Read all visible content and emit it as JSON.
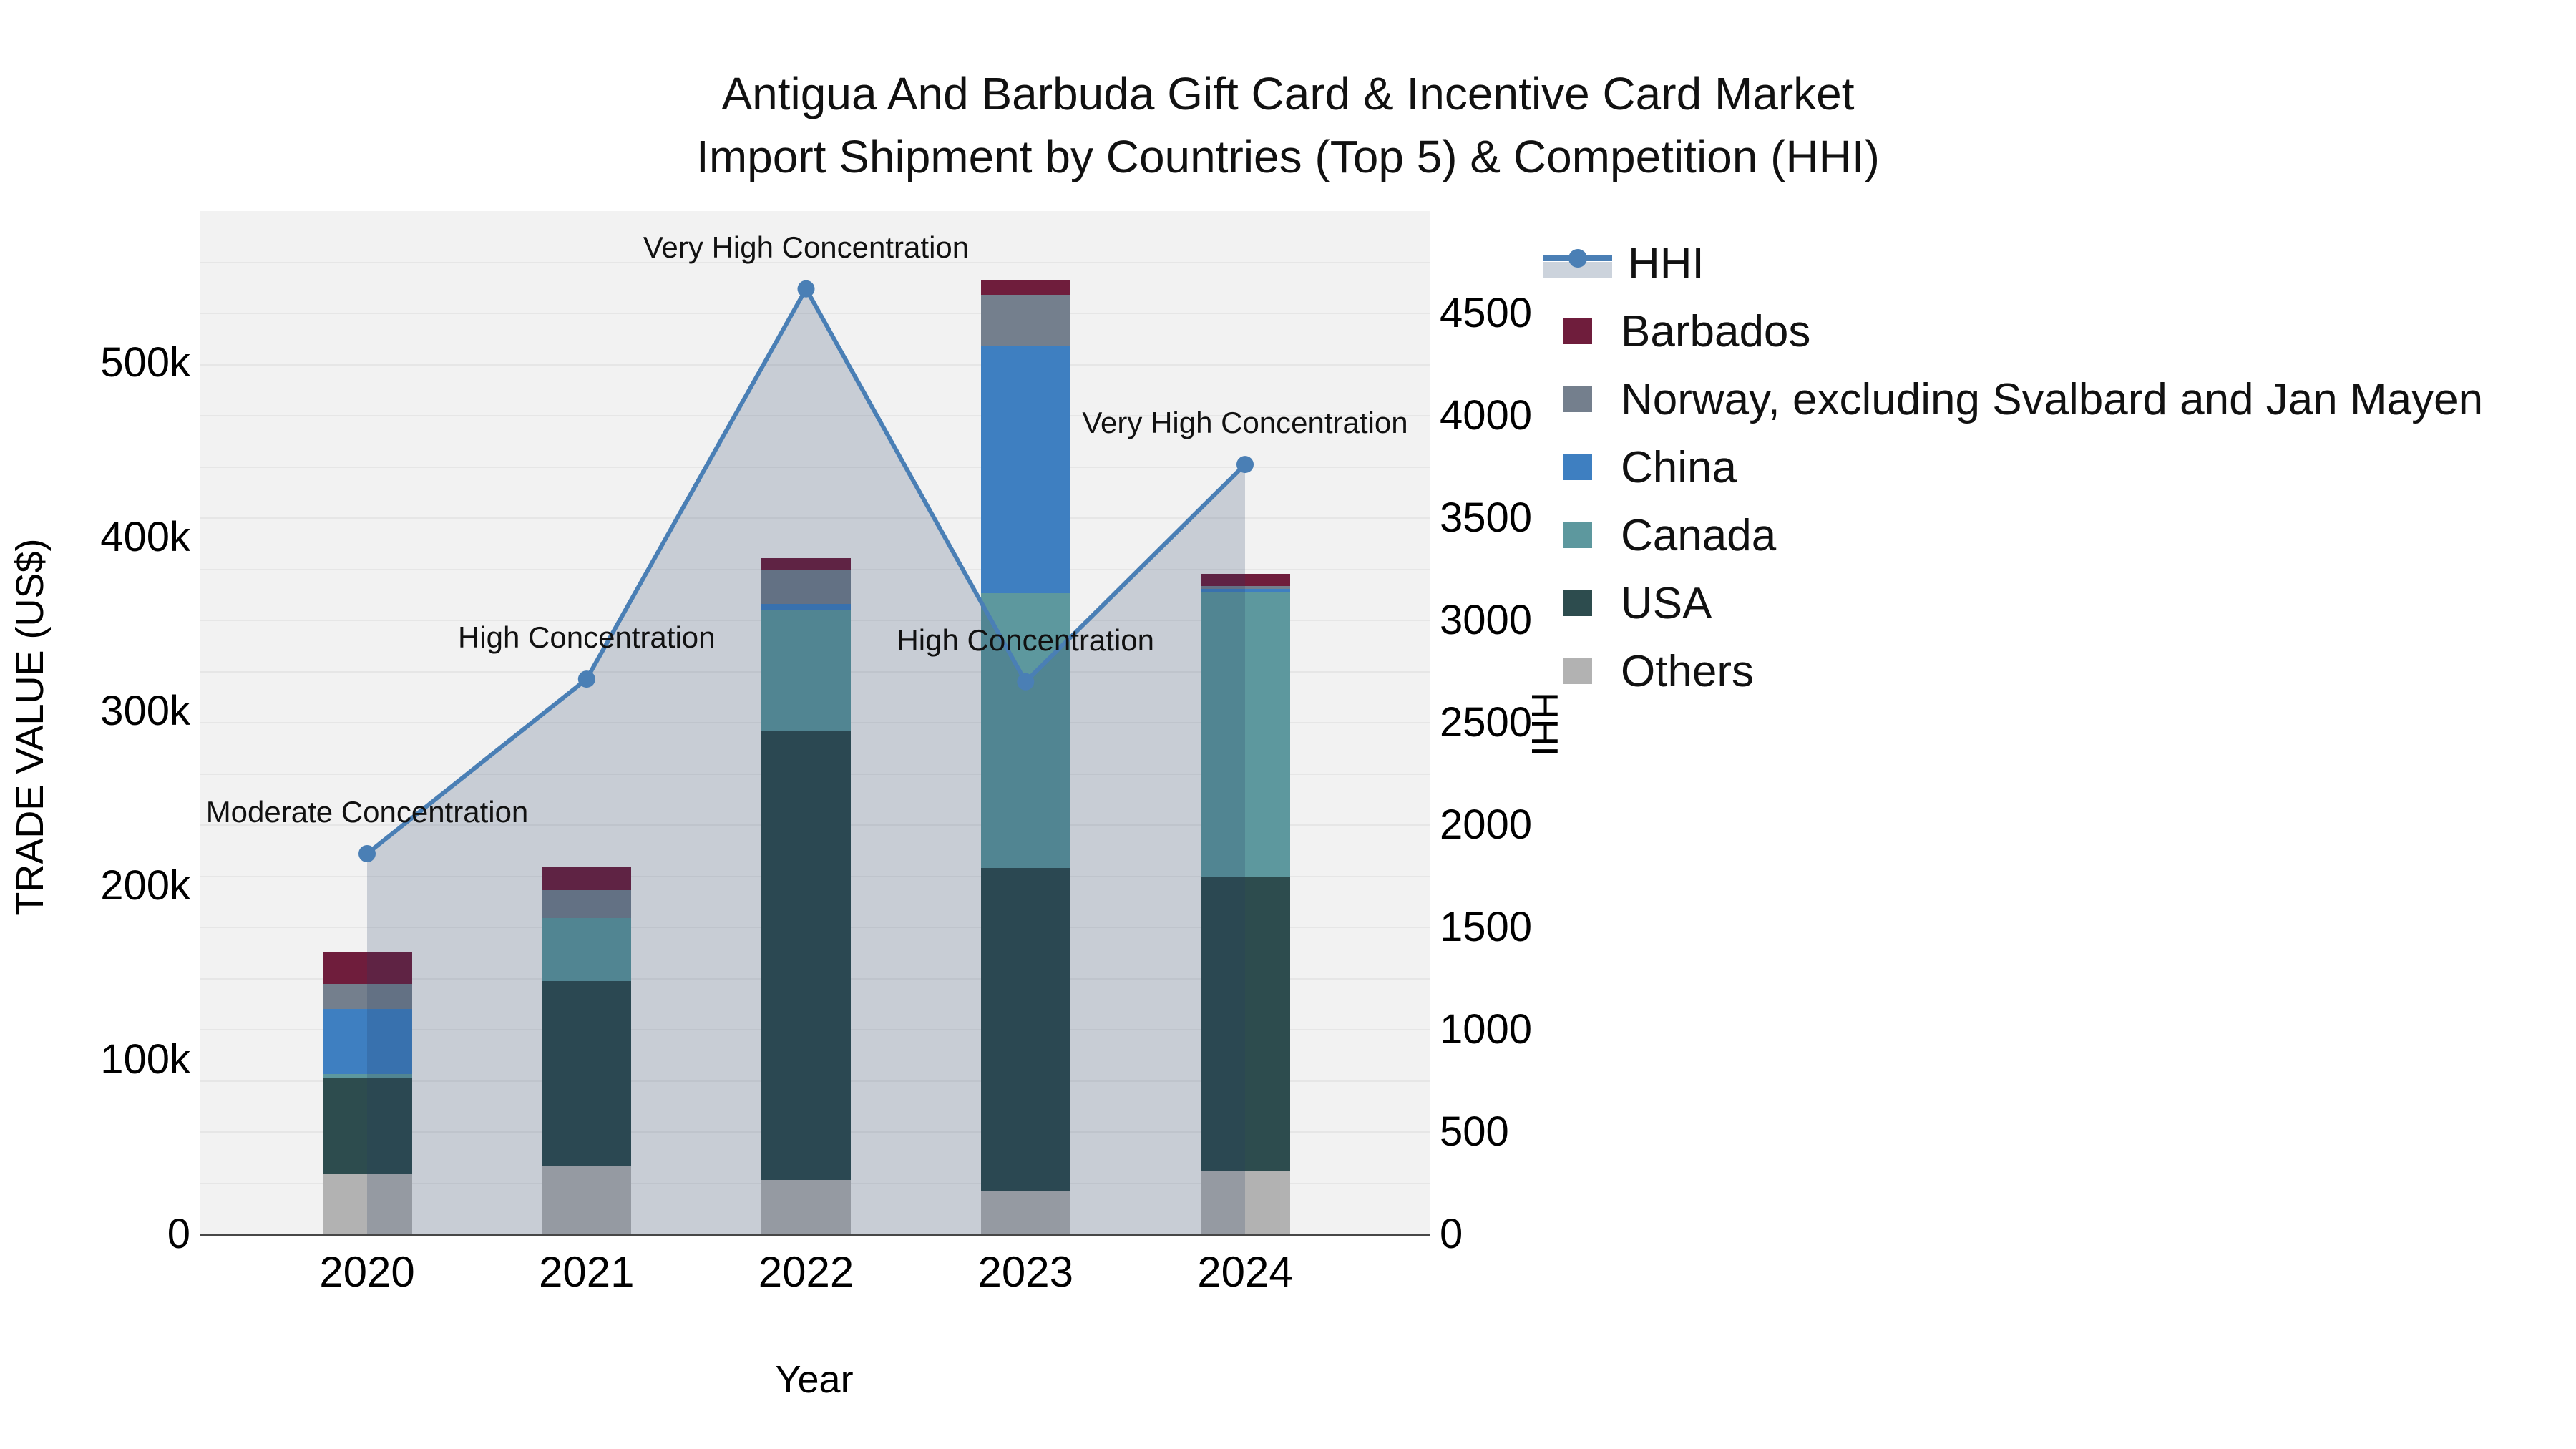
{
  "title": {
    "line1": "Antigua And Barbuda Gift Card & Incentive Card Market",
    "line2": "Import Shipment by Countries (Top 5) & Competition (HHI)"
  },
  "axes": {
    "x_title": "Year",
    "left_title": "TRADE VALUE (US$)",
    "right_title": "HHI",
    "left_ticks": [
      "0",
      "100k",
      "200k",
      "300k",
      "400k",
      "500k"
    ],
    "left_tick_values": [
      0,
      100000,
      200000,
      300000,
      400000,
      500000
    ],
    "right_ticks": [
      "0",
      "500",
      "1000",
      "1500",
      "2000",
      "2500",
      "3000",
      "3500",
      "4000",
      "4500"
    ],
    "right_tick_values": [
      0,
      500,
      1000,
      1500,
      2000,
      2500,
      3000,
      3500,
      4000,
      4500
    ]
  },
  "legend": {
    "items": [
      {
        "label": "HHI",
        "type": "line"
      },
      {
        "label": "Barbados",
        "type": "swatch"
      },
      {
        "label": "Norway, excluding Svalbard and Jan Mayen",
        "type": "swatch"
      },
      {
        "label": "China",
        "type": "swatch"
      },
      {
        "label": "Canada",
        "type": "swatch"
      },
      {
        "label": "USA",
        "type": "swatch"
      },
      {
        "label": "Others",
        "type": "swatch"
      }
    ]
  },
  "chart_data": {
    "type": "bar",
    "subtype": "stacked-bar-with-line",
    "title": "Antigua And Barbuda Gift Card & Incentive Card Market Import Shipment by Countries (Top 5) & Competition (HHI)",
    "xlabel": "Year",
    "ylabel_left": "TRADE VALUE (US$)",
    "ylabel_right": "HHI",
    "categories": [
      "2020",
      "2021",
      "2022",
      "2023",
      "2024"
    ],
    "bar_value_unit": "US$",
    "series": [
      {
        "name": "Others",
        "color": "#b2b2b2",
        "values": [
          35000,
          39000,
          31000,
          25000,
          36000
        ]
      },
      {
        "name": "USA",
        "color": "#2d4c4e",
        "values": [
          55000,
          106500,
          257500,
          185000,
          169000
        ]
      },
      {
        "name": "Canada",
        "color": "#5d989e",
        "values": [
          1800,
          36000,
          70000,
          158000,
          163500
        ]
      },
      {
        "name": "China",
        "color": "#3e7fc1",
        "values": [
          37700,
          0,
          3000,
          142000,
          1800
        ]
      },
      {
        "name": "Norway, excluding Svalbard and Jan Mayen",
        "color": "#747f8d",
        "values": [
          14300,
          16000,
          19500,
          29000,
          1700
        ]
      },
      {
        "name": "Barbados",
        "color": "#6f1d3c",
        "values": [
          18000,
          13500,
          7000,
          8500,
          7000
        ]
      }
    ],
    "bar_totals": [
      161800,
      211000,
      388000,
      547500,
      379000
    ],
    "line": {
      "name": "HHI",
      "color": "#4a7fb5",
      "fill": "rgba(36,62,99,0.20)",
      "values": [
        1860,
        2713,
        4620,
        2700,
        3762
      ]
    },
    "annotations": [
      {
        "year": "2020",
        "text": "Moderate Concentration"
      },
      {
        "year": "2021",
        "text": "High Concentration"
      },
      {
        "year": "2022",
        "text": "Very High Concentration"
      },
      {
        "year": "2023",
        "text": "High Concentration"
      },
      {
        "year": "2024",
        "text": "Very High Concentration"
      }
    ],
    "left_axis": {
      "range": [
        0,
        587000
      ],
      "tick_step": 100000
    },
    "right_axis": {
      "range": [
        0,
        5000
      ],
      "grid_step": 250
    },
    "grid": true,
    "legend_position": "right",
    "plot_background": "#f2f2f2"
  }
}
